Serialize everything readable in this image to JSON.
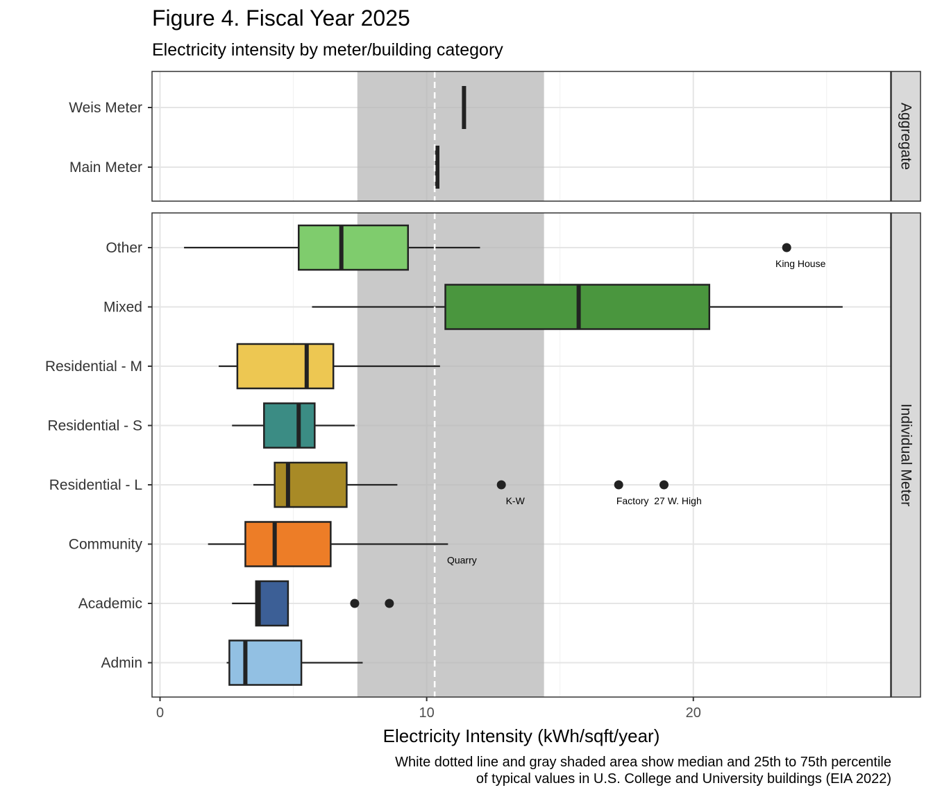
{
  "chart_data": {
    "type": "boxplot",
    "title": "Figure 4. Fiscal Year 2025",
    "subtitle": "Electricity intensity by meter/building category",
    "xlabel": "Electricity Intensity (kWh/sqft/year)",
    "xlim": [
      -0.3,
      27.4
    ],
    "x_ticks": [
      0,
      10,
      20
    ],
    "grid": true,
    "reference": {
      "median": 10.3,
      "p25": 7.4,
      "p75": 14.4
    },
    "caption": [
      "White dotted line and gray shaded area show median and 25th to 75th percentile",
      "of typical values in U.S. College and University buildings (EIA 2022)"
    ],
    "panels": [
      {
        "strip": "Aggregate",
        "categories": [
          "Weis Meter",
          "Main Meter"
        ],
        "meters": [
          {
            "label": "Weis Meter",
            "value": 11.4
          },
          {
            "label": "Main Meter",
            "value": 10.4
          }
        ]
      },
      {
        "strip": "Individual Meter",
        "categories": [
          "Other",
          "Mixed",
          "Residential - M",
          "Residential - S",
          "Residential - L",
          "Community",
          "Academic",
          "Admin"
        ],
        "boxes": [
          {
            "label": "Other",
            "color": "#7fcc6d",
            "whisker_low": 0.9,
            "q1": 5.2,
            "median": 6.8,
            "q3": 9.3,
            "whisker_high": 12.0,
            "outliers": [
              {
                "x": 23.5,
                "label": "King House"
              }
            ]
          },
          {
            "label": "Mixed",
            "color": "#4a963e",
            "whisker_low": 5.7,
            "q1": 10.7,
            "median": 15.7,
            "q3": 20.6,
            "whisker_high": 25.6,
            "outliers": []
          },
          {
            "label": "Residential - M",
            "color": "#edc752",
            "whisker_low": 2.2,
            "q1": 2.9,
            "median": 5.5,
            "q3": 6.5,
            "whisker_high": 10.5,
            "outliers": []
          },
          {
            "label": "Residential - S",
            "color": "#3b8c84",
            "whisker_low": 2.7,
            "q1": 3.9,
            "median": 5.2,
            "q3": 5.8,
            "whisker_high": 7.3,
            "outliers": []
          },
          {
            "label": "Residential - L",
            "color": "#a88a26",
            "whisker_low": 3.5,
            "q1": 4.3,
            "median": 4.8,
            "q3": 7.0,
            "whisker_high": 8.9,
            "outliers": [
              {
                "x": 12.8,
                "label": "K-W"
              },
              {
                "x": 17.2,
                "label": "Factory"
              },
              {
                "x": 18.9,
                "label": "27 W. High"
              }
            ]
          },
          {
            "label": "Community",
            "color": "#ed7d27",
            "whisker_low": 1.8,
            "q1": 3.2,
            "median": 4.3,
            "q3": 6.4,
            "whisker_high": 10.8,
            "outliers": [],
            "annotation": "Quarry"
          },
          {
            "label": "Academic",
            "color": "#3c5f96",
            "whisker_low": 2.7,
            "q1": 3.6,
            "median": 3.7,
            "q3": 4.8,
            "whisker_high": 4.8,
            "outliers": [
              {
                "x": 7.3
              },
              {
                "x": 8.6
              }
            ]
          },
          {
            "label": "Admin",
            "color": "#92c0e3",
            "whisker_low": 2.5,
            "q1": 2.6,
            "median": 3.2,
            "q3": 5.3,
            "whisker_high": 7.6,
            "outliers": []
          }
        ]
      }
    ]
  }
}
